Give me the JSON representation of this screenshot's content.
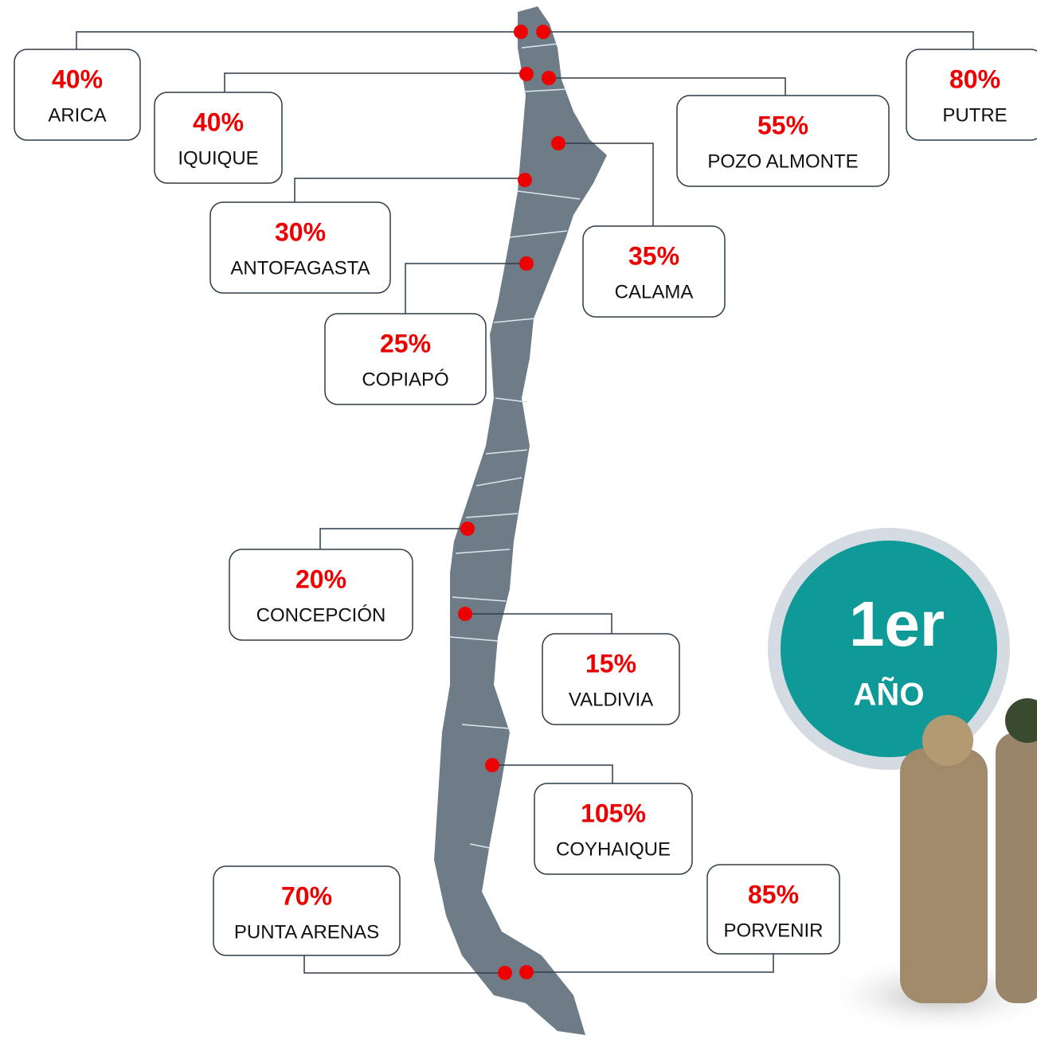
{
  "callouts": [
    {
      "value": "40%",
      "city": "ARICA"
    },
    {
      "value": "80%",
      "city": "PUTRE"
    },
    {
      "value": "40%",
      "city": "IQUIQUE"
    },
    {
      "value": "55%",
      "city": "POZO ALMONTE"
    },
    {
      "value": "35%",
      "city": "CALAMA"
    },
    {
      "value": "30%",
      "city": "ANTOFAGASTA"
    },
    {
      "value": "25%",
      "city": "COPIAPÓ"
    },
    {
      "value": "20%",
      "city": "CONCEPCIÓN"
    },
    {
      "value": "15%",
      "city": "VALDIVIA"
    },
    {
      "value": "105%",
      "city": "COYHAIQUE"
    },
    {
      "value": "70%",
      "city": "PUNTA ARENAS"
    },
    {
      "value": "85%",
      "city": "PORVENIR"
    }
  ],
  "badge": {
    "number": "1er",
    "label": "AÑO"
  }
}
